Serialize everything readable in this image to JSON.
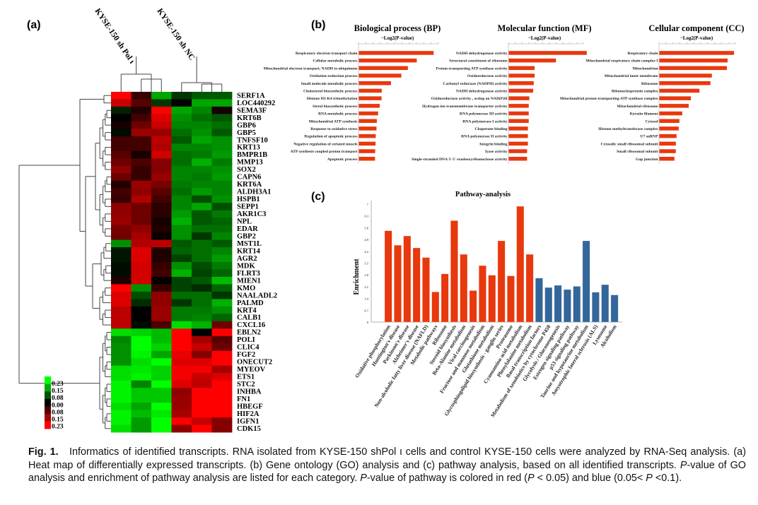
{
  "panel_labels": {
    "a": "(a)",
    "b": "(b)",
    "c": "(c)"
  },
  "chart_data": [
    {
      "type": "heatmap",
      "columns_groups": [
        "KYSE-150 sh Pol ι",
        "KYSE-150 sh NC"
      ],
      "legend": {
        "labels": [
          "0.23",
          "0.15",
          "0.08",
          "0.00",
          "0.08",
          "0.15",
          "0.23"
        ],
        "top_color": "#00ff00",
        "mid_color": "#000000",
        "bottom_color": "#ff0000"
      },
      "rows": [
        "SERF1A",
        "LOC440292",
        "SEMA3F",
        "KRT6B",
        "GBP6",
        "GBP5",
        "TNFSF10",
        "KRT13",
        "BMPR1B",
        "MMP13",
        "SOX2",
        "CAPN6",
        "KRT6A",
        "ALDH3A1",
        "HSPB1",
        "SEPP1",
        "AKR1C3",
        "NPL",
        "EDAR",
        "GBP2",
        "MST1L",
        "KRT14",
        "AGR2",
        "MDK",
        "FLRT3",
        "MIEN1",
        "KMO",
        "NAALADL2",
        "PALMD",
        "KRT4",
        "CALB1",
        "CXCL16",
        "EBLN2",
        "POLI",
        "CLIC4",
        "FGF2",
        "ONECUT2",
        "MYEOV",
        "ETS1",
        "STC2",
        "INHBA",
        "FN1",
        "HBEGF",
        "HIF2A",
        "IGFN1",
        "CDK15"
      ],
      "values": [
        [
          0.23,
          0.05,
          -0.15,
          -0.05,
          -0.08,
          -0.08
        ],
        [
          0.18,
          0.08,
          -0.05,
          0,
          -0.15,
          -0.15
        ],
        [
          -0.03,
          0.03,
          0.23,
          -0.15,
          -0.12,
          0.02
        ],
        [
          0,
          0.06,
          0.2,
          -0.13,
          -0.1,
          -0.08
        ],
        [
          0.02,
          0.1,
          0.18,
          -0.12,
          -0.12,
          -0.1
        ],
        [
          -0.01,
          0.14,
          0.14,
          -0.1,
          -0.13,
          -0.08
        ],
        [
          0.06,
          0.06,
          0.17,
          -0.08,
          -0.15,
          -0.13
        ],
        [
          0.06,
          0.06,
          0.16,
          -0.12,
          -0.12,
          -0.13
        ],
        [
          0.08,
          0.02,
          0.19,
          -0.1,
          -0.11,
          -0.14
        ],
        [
          0.1,
          0.07,
          0.12,
          -0.1,
          -0.16,
          -0.11
        ],
        [
          0.13,
          0.05,
          0.12,
          -0.12,
          -0.12,
          -0.13
        ],
        [
          0.1,
          0.05,
          0.14,
          -0.12,
          -0.11,
          -0.14
        ],
        [
          0.03,
          0.14,
          0.11,
          -0.11,
          -0.12,
          -0.12
        ],
        [
          0.06,
          0.13,
          0.08,
          -0.1,
          -0.14,
          -0.12
        ],
        [
          0.05,
          0.16,
          0.06,
          -0.12,
          -0.07,
          -0.13
        ],
        [
          0.13,
          0.1,
          0.04,
          -0.12,
          -0.15,
          -0.07
        ],
        [
          0.13,
          0.1,
          0.04,
          -0.14,
          -0.08,
          -0.11
        ],
        [
          0.14,
          0.1,
          0.02,
          -0.16,
          -0.08,
          -0.09
        ],
        [
          0.11,
          0.13,
          0.03,
          -0.13,
          -0.1,
          -0.1
        ],
        [
          0.1,
          0.15,
          0.01,
          -0.13,
          -0.05,
          -0.12
        ],
        [
          -0.13,
          0.16,
          0.17,
          -0.08,
          -0.1,
          -0.08
        ],
        [
          -0.02,
          0.2,
          0.03,
          -0.09,
          -0.1,
          -0.12
        ],
        [
          -0.02,
          0.2,
          0.03,
          -0.06,
          -0.1,
          -0.14
        ],
        [
          -0.01,
          0.19,
          0.05,
          -0.13,
          -0.07,
          -0.11
        ],
        [
          -0.01,
          0.19,
          0.06,
          -0.16,
          -0.06,
          -0.09
        ],
        [
          0.03,
          0.19,
          0,
          -0.06,
          -0.08,
          -0.17
        ],
        [
          0.23,
          -0.13,
          0.05,
          -0.06,
          -0.04,
          -0.09
        ],
        [
          0.2,
          -0.07,
          0.13,
          -0.1,
          -0.1,
          -0.05
        ],
        [
          0.2,
          -0.04,
          0.13,
          -0.05,
          -0.1,
          -0.16
        ],
        [
          0.17,
          0,
          0.14,
          -0.11,
          -0.11,
          -0.13
        ],
        [
          0.17,
          0,
          0.14,
          -0.11,
          -0.12,
          -0.09
        ],
        [
          0.17,
          -0.01,
          0.07,
          -0.2,
          -0.16,
          0.1
        ],
        [
          -0.2,
          -0.19,
          -0.17,
          0.23,
          0,
          0.23
        ],
        [
          -0.12,
          -0.23,
          -0.17,
          0.23,
          0.15,
          0.08
        ],
        [
          -0.13,
          -0.23,
          -0.19,
          0.23,
          0.18,
          0.1
        ],
        [
          -0.13,
          -0.22,
          -0.15,
          0.21,
          0.12,
          0.23
        ],
        [
          -0.13,
          -0.2,
          -0.23,
          0.2,
          0.2,
          0.23
        ],
        [
          -0.2,
          -0.21,
          -0.19,
          0.22,
          0.22,
          0.15
        ],
        [
          -0.2,
          -0.22,
          -0.19,
          0.22,
          0.18,
          0.2
        ],
        [
          -0.22,
          -0.12,
          -0.23,
          0.2,
          0.17,
          0.23
        ],
        [
          -0.22,
          -0.18,
          -0.18,
          0.13,
          0.23,
          0.23
        ],
        [
          -0.22,
          -0.18,
          -0.18,
          0.14,
          0.23,
          0.23
        ],
        [
          -0.2,
          -0.15,
          -0.23,
          0.14,
          0.23,
          0.23
        ],
        [
          -0.22,
          -0.17,
          -0.21,
          0.15,
          0.23,
          0.23
        ],
        [
          -0.22,
          -0.14,
          -0.23,
          0.23,
          0.18,
          0.12
        ],
        [
          -0.2,
          -0.14,
          -0.23,
          0.13,
          0.23,
          0.12
        ]
      ]
    },
    {
      "type": "bar",
      "orientation": "horizontal",
      "title": "Biological process (BP)",
      "xlabel": "−Log2(P-value)",
      "bar_color": "#e8380d",
      "categories": [
        "Respiratory electron transport chain",
        "Cellular metabolic process",
        "Mitochondrial electron transport, NADH to ubiquinone",
        "Oxidation-reduction process",
        "Small molecule metabolic process",
        "Cholesterol biosynthetic process",
        "Histone H3-K4 trimethylation",
        "Sterol biosynthetic process",
        "RNA metabolic process",
        "Mitochondrial ATP synthesis",
        "Response to oxidative stress",
        "Regulation of apoptotic process",
        "Negative regulation of striated muscle",
        "ATP synthesis coupled proton transport",
        "Apoptotic process"
      ],
      "values": [
        41.2,
        31.9,
        27,
        23.4,
        17.7,
        12.6,
        12.5,
        11.5,
        10.6,
        9.9,
        9.7,
        9.3,
        9.2,
        9.0,
        8.9
      ],
      "xlim": [
        0,
        44
      ]
    },
    {
      "type": "bar",
      "orientation": "horizontal",
      "title": "Molecular function (MF)",
      "xlabel": "−Log2(P-value)",
      "bar_color": "#e8380d",
      "categories": [
        "NADH dehydrogenase activity",
        "Structural constituent of ribosome",
        "Proton-transporting ATP synthase activity",
        "Oxidoreductase activity",
        "Carbonyl reductase (NADPH) activity",
        "NADH dehydrogenase activity",
        "Oxidoreductase activity , acting on NAD(P)H",
        "Hydrogen ion transmembrane transporter activity",
        "RNA polymerase III activity",
        "RNA polymerase I activity",
        "Chaperone binding",
        "RNA polymerase II activity",
        "Integrin binding",
        "Iyase activity",
        "Single-stranded DNA 3'-5' exodeoxyribonuclease activity"
      ],
      "values": [
        28.1,
        17.0,
        9.3,
        9.3,
        9.0,
        8.8,
        7.4,
        7.2,
        7.2,
        7.2,
        6.9,
        6.9,
        6.9,
        6.6,
        6.6
      ],
      "xlim": [
        0,
        27
      ]
    },
    {
      "type": "bar",
      "orientation": "horizontal",
      "title": "Cellular component (CC)",
      "xlabel": "−Log2(P-value)",
      "bar_color": "#e8380d",
      "categories": [
        "Respiratory chain",
        "Mitochondrial respiratory chain complex I",
        "Mitochondrion",
        "Mitochondrial inner membrane",
        "Ribosome",
        "Ribonucleoprotein complex",
        "Mitochondrial proton-transporting ATP synthase complex",
        "Mitochondrial ribosome",
        "Keratin filament",
        "Cytosol",
        "Histone methyltransferase complex",
        "U7 snRNP",
        "Cytosolic small ribosomal subunit",
        "Small ribosomal subunit",
        "Gap junction"
      ],
      "values": [
        31.3,
        28.6,
        28.3,
        22,
        21.4,
        16.8,
        13.2,
        12.3,
        9.6,
        8.4,
        8.1,
        7.2,
        6.9,
        6.9,
        6.3
      ],
      "xlim": [
        0,
        32
      ]
    },
    {
      "type": "bar",
      "title": "Pathway-analysis",
      "ylabel": "Enrichment",
      "ylim": [
        0,
        7
      ],
      "yticks": [
        "0",
        "0.7",
        "1.4",
        "2.1",
        "2.8",
        "3.5",
        "4.2",
        "4.9",
        "5.6",
        "6.3",
        "7"
      ],
      "colors": {
        "red": "#e8380d",
        "blue": "#336699"
      },
      "categories": [
        "Oxidative phosphorylation",
        "Huntington's disease",
        "Parkinson's disease",
        "Alzheimer's disease",
        "Non-alcoholic fatty liver disease (NAFLD)",
        "Metabolic pathways",
        "Ribosome",
        "Steroid biosynthesis",
        "Beta-Alanine metabolism",
        "Viral carcinogenesis",
        "Fructose and mannose metabolism",
        "Glutathione metabolism",
        "Glycosphingolipid biosynthesis - ganglio series",
        "Proteasome",
        "Cyanoamino acid metabolism",
        "Phenylalanine metabolism",
        "Basal transcription factors",
        "Metabolism of xenobiotics by cytochrome P450",
        "Glycolysis / Gluconeogenesis",
        "Estrogen signaling pathway",
        "p53 signaling pathway",
        "Taurine and hypotaurine metabolism",
        "Amyotrophic lateral sclerosis (ALS)",
        "Lysosome",
        "Alcoholism"
      ],
      "values": [
        5.42,
        4.56,
        5.11,
        4.4,
        3.83,
        1.79,
        2.86,
        6.02,
        4.02,
        1.87,
        3.35,
        2.78,
        4.82,
        2.74,
        6.87,
        4.02,
        2.61,
        2.05,
        2.18,
        1.93,
        2.12,
        4.82,
        1.77,
        2.22,
        1.61
      ],
      "series_color": [
        "red",
        "red",
        "red",
        "red",
        "red",
        "red",
        "red",
        "red",
        "red",
        "red",
        "red",
        "red",
        "red",
        "red",
        "red",
        "red",
        "blue",
        "blue",
        "blue",
        "blue",
        "blue",
        "blue",
        "blue",
        "blue",
        "blue"
      ]
    }
  ],
  "caption": {
    "fig": "Fig. 1.",
    "t1": "Informatics of identified transcripts. RNA isolated from KYSE-150 shPol ι cells and control KYSE-150 cells were analyzed by RNA-Seq analysis. (a) Heat map of differentially expressed transcripts. (b) Gene ontology (GO) analysis and (c) pathway analysis, based on all identified transcripts. ",
    "p": "P",
    "t2": "-value of GO analysis and enrichment of pathway analysis are listed for each category. ",
    "t3": "-value of pathway is colored in red (",
    "t4": " < 0.05) and blue (0.05< ",
    "t5": " <0.1)."
  }
}
